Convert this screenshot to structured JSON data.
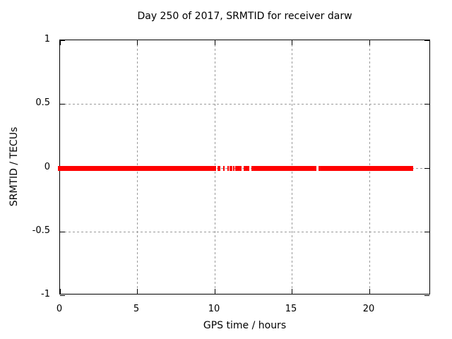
{
  "chart_data": {
    "type": "line",
    "title": "Day 250 of 2017, SRMTID for receiver darw",
    "xlabel": "GPS time / hours",
    "ylabel": "SRMTID / TECUs",
    "xlim": [
      0,
      24
    ],
    "ylim": [
      -1,
      1
    ],
    "xticks": [
      0,
      5,
      10,
      15,
      20
    ],
    "yticks": [
      -1,
      -0.5,
      0,
      0.5,
      1
    ],
    "grid": true,
    "legend_position": "none",
    "series": [
      {
        "name": "SRMTID",
        "color": "#ff0000",
        "y_value": 0,
        "style": "thick-horizontal-segments",
        "segments_x_hours": [
          [
            0,
            10.1
          ],
          [
            10.2,
            10.38
          ],
          [
            10.55,
            10.66
          ],
          [
            10.82,
            10.93
          ],
          [
            10.97,
            11.15
          ],
          [
            11.2,
            11.3
          ],
          [
            11.34,
            11.74
          ],
          [
            11.87,
            12.24
          ],
          [
            12.38,
            16.58
          ],
          [
            16.73,
            22.85
          ]
        ]
      }
    ],
    "colors": {
      "background": "#ffffff",
      "axis": "#000000",
      "grid": "#9a9a9a",
      "text": "#000000"
    }
  }
}
